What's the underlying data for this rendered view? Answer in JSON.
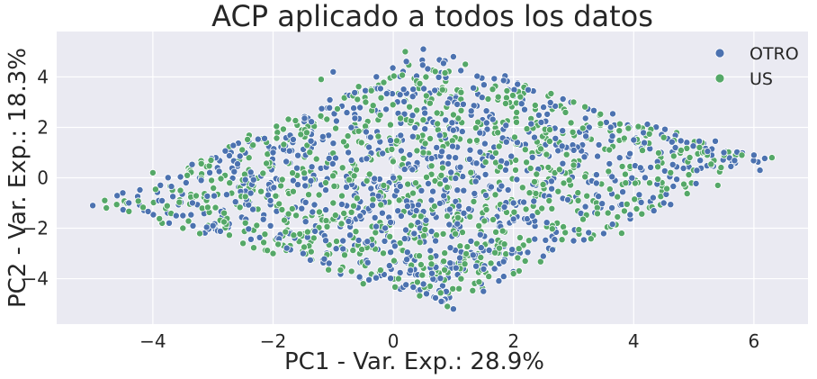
{
  "chart_data": {
    "type": "scatter",
    "title": "ACP aplicado a todos los datos",
    "xlabel": "PC1 - Var. Exp.: 28.9%",
    "ylabel": "PC2 - Var. Exp.: 18.3%",
    "xlim": [
      -5.6,
      6.9
    ],
    "ylim": [
      -5.8,
      5.8
    ],
    "xticks": [
      -4,
      -2,
      0,
      2,
      4,
      6
    ],
    "yticks": [
      -4,
      -2,
      0,
      2,
      4
    ],
    "xtick_labels": [
      "−4",
      "−2",
      "0",
      "2",
      "4",
      "6"
    ],
    "ytick_labels": [
      "−4",
      "−2",
      "0",
      "2",
      "4"
    ],
    "grid": true,
    "legend_position": "top-right",
    "background_color": "#EAEAF2",
    "grid_color": "#FFFFFF",
    "marker_edge_color": "#FFFFFF",
    "point_distribution": "dense rhombus with vertices near (-5.0,-1.1), (0.6,5.1), (6.3,0.8), (0.9,-5.2)",
    "series": [
      {
        "name": "OTRO",
        "color": "#4C72B0",
        "sample_points": [
          [
            -5.0,
            -1.1
          ],
          [
            -4.5,
            -0.6
          ],
          [
            -3.0,
            -1.9
          ],
          [
            -1.0,
            4.2
          ],
          [
            0.5,
            5.1
          ],
          [
            1.0,
            4.8
          ],
          [
            2.5,
            2.8
          ],
          [
            4.0,
            1.5
          ],
          [
            5.5,
            1.0
          ],
          [
            6.0,
            0.9
          ],
          [
            6.1,
            0.3
          ],
          [
            4.5,
            -1.0
          ],
          [
            3.0,
            -2.5
          ],
          [
            1.5,
            -4.5
          ],
          [
            1.0,
            -5.2
          ],
          [
            0.8,
            -4.9
          ],
          [
            -1.5,
            -3.0
          ],
          [
            -3.5,
            -1.5
          ],
          [
            0.0,
            0.0
          ],
          [
            2.0,
            -1.0
          ],
          [
            -2.0,
            1.0
          ]
        ]
      },
      {
        "name": "US",
        "color": "#55A868",
        "sample_points": [
          [
            -4.8,
            -0.9
          ],
          [
            -3.5,
            -2.0
          ],
          [
            -2.0,
            -3.0
          ],
          [
            -1.2,
            3.9
          ],
          [
            0.2,
            5.0
          ],
          [
            1.2,
            4.5
          ],
          [
            3.0,
            3.0
          ],
          [
            4.5,
            1.6
          ],
          [
            5.8,
            0.9
          ],
          [
            6.3,
            0.8
          ],
          [
            5.4,
            -0.3
          ],
          [
            3.8,
            -2.2
          ],
          [
            2.0,
            -3.8
          ],
          [
            0.9,
            -5.1
          ],
          [
            -0.5,
            -4.2
          ],
          [
            -2.5,
            -2.6
          ],
          [
            -4.0,
            0.2
          ],
          [
            0.5,
            1.0
          ],
          [
            -1.0,
            -1.0
          ],
          [
            3.0,
            0.5
          ],
          [
            1.0,
            2.5
          ]
        ]
      }
    ]
  }
}
